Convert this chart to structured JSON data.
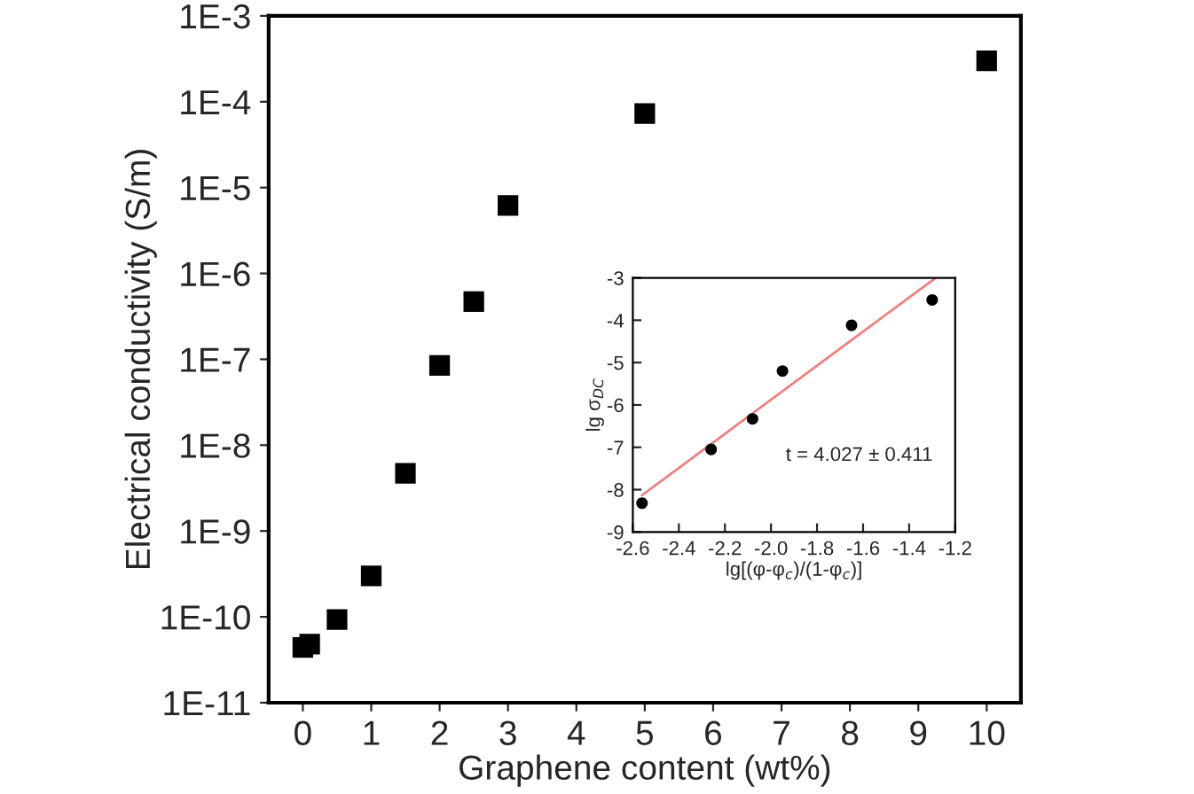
{
  "chart_data": [
    {
      "type": "scatter",
      "xlabel": "Graphene content (wt%)",
      "ylabel": "Electrical conductivity (S/m)",
      "log": "y",
      "marker": "square",
      "grid": false,
      "legend": false,
      "x": [
        0,
        0.1,
        0.5,
        1,
        1.5,
        2,
        2.5,
        3,
        5,
        10
      ],
      "series": [
        {
          "color": "#000000",
          "values": [
            4.4e-11,
            4.8e-11,
            9.3e-11,
            3e-10,
            4.7e-09,
            8.5e-08,
            4.7e-07,
            6.2e-06,
            7.3e-05,
            0.0003
          ]
        }
      ],
      "xlim": [
        -0.5,
        10.5
      ],
      "xticks": [
        0,
        1,
        2,
        3,
        4,
        5,
        6,
        7,
        8,
        9,
        10
      ],
      "ylim": [
        1e-11,
        0.001
      ],
      "yticks": [
        {
          "value": 1e-11,
          "label": "1E-11"
        },
        {
          "value": 1e-10,
          "label": "1E-10"
        },
        {
          "value": 1e-09,
          "label": "1E-9"
        },
        {
          "value": 1e-08,
          "label": "1E-8"
        },
        {
          "value": 1e-07,
          "label": "1E-7"
        },
        {
          "value": 1e-06,
          "label": "1E-6"
        },
        {
          "value": 1e-05,
          "label": "1E-5"
        },
        {
          "value": 0.0001,
          "label": "1E-4"
        },
        {
          "value": 0.001,
          "label": "1E-3"
        }
      ]
    },
    {
      "type": "scatter",
      "xlabel": "lg[(φ-φ$_{c}$)/(1-φ$_{c}$)]",
      "ylabel": "lg σ$_{DC}$",
      "marker": "circle",
      "grid": false,
      "legend": false,
      "annotations": [
        "t = 4.027 ± 0.411"
      ],
      "series": [
        {
          "color": "#000000",
          "x": [
            -2.56,
            -2.26,
            -2.08,
            -1.95,
            -1.65,
            -1.3
          ],
          "values": [
            -8.32,
            -7.05,
            -6.33,
            -5.2,
            -4.12,
            -3.52
          ]
        },
        {
          "type": "line",
          "marker": "none",
          "color": "#f08080",
          "x": [
            -2.56,
            -1.29
          ],
          "values": [
            -8.13,
            -3.02
          ]
        }
      ],
      "xlim": [
        -2.6,
        -1.2
      ],
      "xticks": [
        -2.6,
        -2.4,
        -2.2,
        {
          "value": -2.0,
          "label": "-2.0"
        },
        -1.8,
        -1.6,
        -1.4,
        -1.2
      ],
      "ylim": [
        -9,
        -3
      ],
      "yticks": [
        -9,
        -8,
        -7,
        -6,
        -5,
        -4,
        -3
      ]
    }
  ]
}
